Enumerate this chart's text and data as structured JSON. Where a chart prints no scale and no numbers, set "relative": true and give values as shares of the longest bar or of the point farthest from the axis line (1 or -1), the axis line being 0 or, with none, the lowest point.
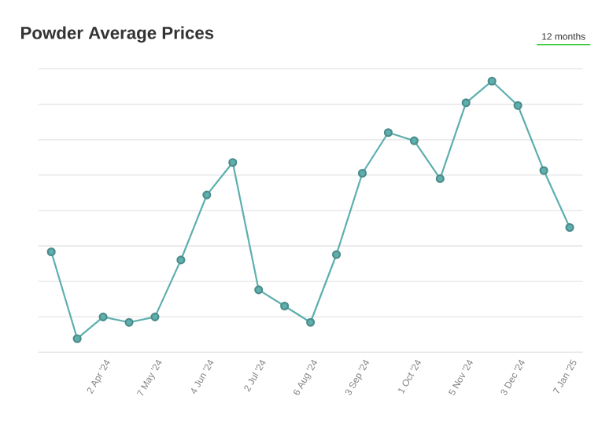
{
  "chart_data": {
    "type": "line",
    "title": "Powder Average Prices",
    "annotations": [
      "12 months"
    ],
    "categories": [
      null,
      null,
      "2 Apr '24",
      null,
      "7 May '24",
      null,
      "4 Jun '24",
      null,
      "2 Jul '24",
      null,
      "6 Aug '24",
      null,
      "3 Sep '24",
      null,
      "1 Oct '24",
      null,
      "5 Nov '24",
      null,
      "3 Dec '24",
      null,
      "7 Jan '25"
    ],
    "series": [
      {
        "color": "#5eafae",
        "values": [
          0.37,
          0.05,
          0.13,
          0.11,
          0.13,
          0.34,
          0.58,
          0.7,
          0.23,
          0.17,
          0.11,
          0.36,
          0.66,
          0.81,
          0.78,
          0.64,
          0.92,
          1.0,
          0.91,
          0.67,
          0.46
        ]
      }
    ],
    "relative": true,
    "grid": "y",
    "marker": "circle"
  }
}
